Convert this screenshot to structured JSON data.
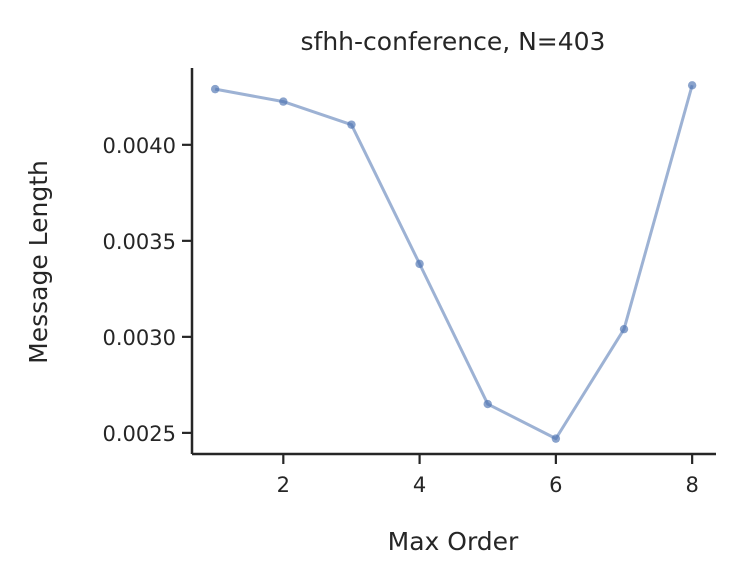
{
  "chart_data": {
    "type": "line",
    "title": "sfhh-conference, N=403",
    "xlabel": "Max Order",
    "ylabel": "Message Length",
    "x": [
      1,
      2,
      3,
      4,
      5,
      6,
      7,
      8
    ],
    "series": [
      {
        "values": [
          0.00429,
          0.004225,
          0.004105,
          0.00338,
          0.00265,
          0.00247,
          0.00304,
          0.00431
        ]
      }
    ],
    "xticks": [
      2,
      4,
      6,
      8
    ],
    "xtick_labels": [
      "2",
      "4",
      "6",
      "8"
    ],
    "yticks": [
      0.0025,
      0.003,
      0.0035,
      0.004
    ],
    "ytick_labels": [
      "0.0025",
      "0.0030",
      "0.0035",
      "0.0040"
    ],
    "xlim": [
      0.66,
      8.35
    ],
    "ylim": [
      0.00239,
      0.0044
    ],
    "grid": false,
    "colors": {
      "line": "#4c72b0",
      "axis": "#262626"
    }
  }
}
